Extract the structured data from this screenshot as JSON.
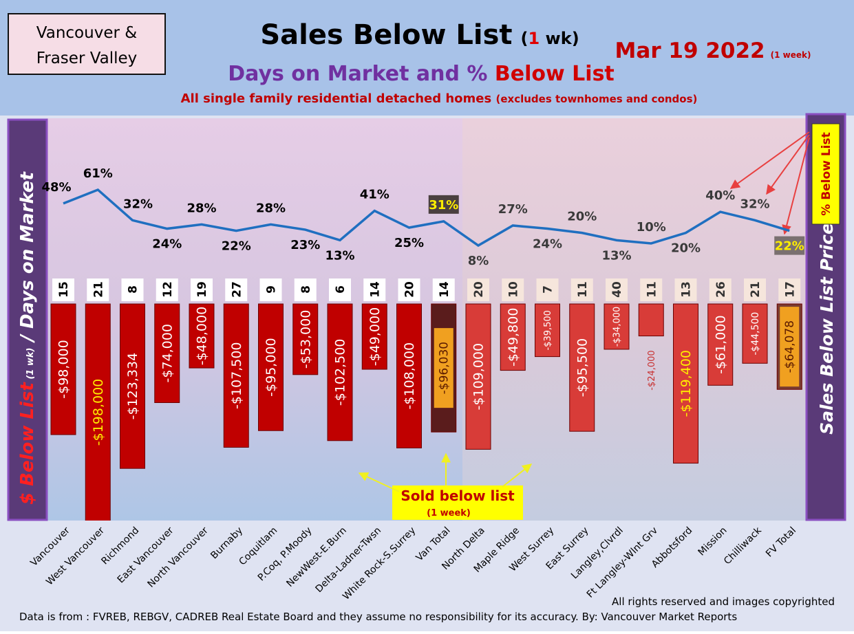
{
  "header": {
    "region": [
      "Vancouver &",
      "Fraser Valley"
    ],
    "title": "Sales Below List",
    "title_open": "(",
    "title_weeks": "1",
    "title_close": " wk)",
    "date": "Mar 19  2022",
    "date_note": "(1 week)",
    "subtitle_a": "Days on Market and % ",
    "subtitle_b": "Below List",
    "description": "All single family residential detached homes ",
    "description_note": "(excludes townhomes and condos)"
  },
  "chart_data": {
    "type": "bar",
    "categories": [
      "Vancouver",
      "West Vancouver",
      "Richmond",
      "East Vancouver",
      "North Vancouver",
      "Burnaby",
      "Coquitlam",
      "P.Coq, P.Moody",
      "NewWest-E.Burn",
      "Delta-Ladner-Twsn",
      "White Rock-S.Surrey",
      "Van Total",
      "North Delta",
      "Maple Ridge",
      "West Surrey",
      "East Surrey",
      "Langley,Clvrdl",
      "Ft Langley-Wlnt Grv",
      "Abbotsford",
      "Mission",
      "Chilliwack",
      "FV Total"
    ],
    "y_label": [
      "$ Below List",
      " (1 wk)",
      " / Days on Market"
    ],
    "series": [
      {
        "name": "Sales Below List Price",
        "values": [
          -98000,
          -198000,
          -123334,
          -74000,
          -48000,
          -107500,
          -95000,
          -53000,
          -102500,
          -49000,
          -108000,
          -96030,
          -109000,
          -49800,
          -39500,
          -95500,
          -34000,
          -24000,
          -119400,
          -61000,
          -44500,
          -64078
        ],
        "value_labels": [
          "-$98,000",
          "-$198,000",
          "-$123,334",
          "-$74,000",
          "-$48,000",
          "-$107,500",
          "-$95,000",
          "-$53,000",
          "-$102,500",
          "-$49,000",
          "-$108,000",
          "-$96,030",
          "-$109,000",
          "-$49,800",
          "-$39,500",
          "-$95,500",
          "-$34,000",
          "-$24,000",
          "-$119,400",
          "-$61,000",
          "-$44,500",
          "-$64,078"
        ],
        "colors": [
          "#c00000",
          "#c00000",
          "#c00000",
          "#c00000",
          "#c00000",
          "#c00000",
          "#c00000",
          "#c00000",
          "#c00000",
          "#c00000",
          "#c00000",
          "#5a1c1c",
          "#d83c38",
          "#d83c38",
          "#d83c38",
          "#d83c38",
          "#d83c38",
          "#d83c38",
          "#d83c38",
          "#d83c38",
          "#d83c38",
          "#7a3c30"
        ]
      },
      {
        "values": [
          15,
          21,
          8,
          12,
          19,
          27,
          9,
          8,
          6,
          14,
          20,
          14,
          20,
          10,
          7,
          11,
          40,
          11,
          13,
          26,
          21,
          17
        ]
      },
      {
        "name": "% Below List",
        "color": "#1f6fc0",
        "values": [
          48,
          61,
          32,
          24,
          28,
          22,
          28,
          23,
          13,
          41,
          25,
          31,
          8,
          27,
          24,
          20,
          13,
          10,
          20,
          40,
          32,
          22
        ],
        "value_labels": [
          "48%",
          "61%",
          "32%",
          "24%",
          "28%",
          "22%",
          "28%",
          "23%",
          "13%",
          "41%",
          "25%",
          "31%",
          "8%",
          "27%",
          "24%",
          "20%",
          "13%",
          "10%",
          "20%",
          "40%",
          "32%",
          "22%"
        ]
      }
    ],
    "callout": [
      "Sold below list",
      "(1 week)"
    ]
  },
  "footer": {
    "copyright": "All rights reserved and  images copyrighted",
    "source": "Data is from : FVREB, REBGV, CADREB Real Estate Board and they assume no responsibility for its accuracy. By: Vancouver Market Reports"
  }
}
